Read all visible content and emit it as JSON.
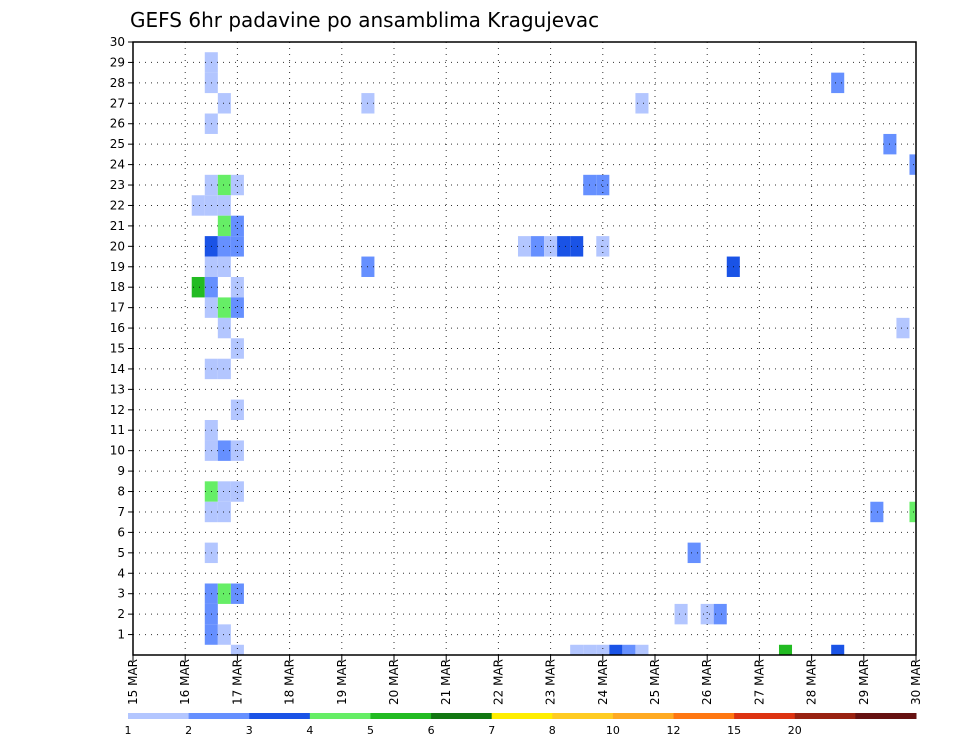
{
  "chart_data": {
    "type": "heatmap",
    "title": "GEFS 6hr padavine po ansamblima Kragujevac",
    "xlabel": "",
    "ylabel": "",
    "x_ticks": [
      "15 MAR",
      "16 MAR",
      "17 MAR",
      "18 MAR",
      "19 MAR",
      "20 MAR",
      "21 MAR",
      "22 MAR",
      "23 MAR",
      "24 MAR",
      "25 MAR",
      "26 MAR",
      "27 MAR",
      "28 MAR",
      "29 MAR",
      "30 MAR"
    ],
    "y_ticks": [
      "1",
      "2",
      "3",
      "4",
      "5",
      "6",
      "7",
      "8",
      "9",
      "10",
      "11",
      "12",
      "13",
      "14",
      "15",
      "16",
      "17",
      "18",
      "19",
      "20",
      "21",
      "22",
      "23",
      "24",
      "25",
      "26",
      "27",
      "28",
      "29",
      "30"
    ],
    "x_range_steps": [
      0,
      60
    ],
    "y_range_members": [
      0,
      30
    ],
    "x_step": "6hr",
    "grid": true,
    "legend": {
      "placement": "bottom",
      "labels": [
        "1",
        "2",
        "3",
        "4",
        "5",
        "6",
        "7",
        "8",
        "10",
        "12",
        "15",
        "20"
      ],
      "colors": [
        "#b3c6ff",
        "#6690ff",
        "#1a53e6",
        "#66ee66",
        "#22bb22",
        "#117711",
        "#ffee00",
        "#ffcc22",
        "#ffaa22",
        "#ff7711",
        "#dd3311",
        "#992211",
        "#661111"
      ]
    },
    "cells": [
      [
        6,
        29,
        1
      ],
      [
        6,
        28,
        1
      ],
      [
        7,
        27,
        1
      ],
      [
        6,
        26,
        1
      ],
      [
        6,
        23,
        1
      ],
      [
        7,
        23,
        4
      ],
      [
        8,
        23,
        1
      ],
      [
        5,
        22,
        1
      ],
      [
        6,
        22,
        1
      ],
      [
        7,
        22,
        1
      ],
      [
        7,
        21,
        4
      ],
      [
        8,
        21,
        2
      ],
      [
        6,
        20,
        3
      ],
      [
        7,
        20,
        2
      ],
      [
        8,
        20,
        2
      ],
      [
        6,
        19,
        1
      ],
      [
        7,
        19,
        1
      ],
      [
        5,
        18,
        5
      ],
      [
        6,
        18,
        2
      ],
      [
        8,
        18,
        1
      ],
      [
        6,
        17,
        1
      ],
      [
        7,
        17,
        4
      ],
      [
        8,
        17,
        2
      ],
      [
        7,
        16,
        1
      ],
      [
        8,
        15,
        1
      ],
      [
        6,
        14,
        1
      ],
      [
        7,
        14,
        1
      ],
      [
        8,
        12,
        1
      ],
      [
        6,
        11,
        1
      ],
      [
        6,
        10,
        1
      ],
      [
        7,
        10,
        2
      ],
      [
        8,
        10,
        1
      ],
      [
        6,
        8,
        4
      ],
      [
        7,
        8,
        1
      ],
      [
        8,
        8,
        1
      ],
      [
        6,
        7,
        1
      ],
      [
        7,
        7,
        1
      ],
      [
        6,
        5,
        1
      ],
      [
        6,
        3,
        2
      ],
      [
        7,
        3,
        4
      ],
      [
        8,
        3,
        2
      ],
      [
        6,
        2,
        2
      ],
      [
        6,
        1,
        2
      ],
      [
        7,
        1,
        1
      ],
      [
        8,
        0,
        1
      ],
      [
        18,
        27,
        1
      ],
      [
        18,
        19,
        2
      ],
      [
        30,
        20,
        1
      ],
      [
        31,
        20,
        2
      ],
      [
        32,
        20,
        1
      ],
      [
        33,
        20,
        3
      ],
      [
        34,
        20,
        3
      ],
      [
        36,
        20,
        1
      ],
      [
        35,
        23,
        2
      ],
      [
        36,
        23,
        2
      ],
      [
        39,
        27,
        1
      ],
      [
        34,
        0,
        1
      ],
      [
        35,
        0,
        1
      ],
      [
        36,
        0,
        1
      ],
      [
        37,
        0,
        3
      ],
      [
        38,
        0,
        2
      ],
      [
        39,
        0,
        1
      ],
      [
        43,
        5,
        2
      ],
      [
        42,
        2,
        1
      ],
      [
        44,
        2,
        1
      ],
      [
        45,
        2,
        2
      ],
      [
        46,
        19,
        3
      ],
      [
        50,
        0,
        5
      ],
      [
        54,
        0,
        3
      ],
      [
        54,
        28,
        2
      ],
      [
        58,
        25,
        2
      ],
      [
        59,
        16,
        1
      ],
      [
        57,
        7,
        2
      ],
      [
        60,
        24,
        2
      ],
      [
        60,
        7,
        4
      ]
    ]
  }
}
